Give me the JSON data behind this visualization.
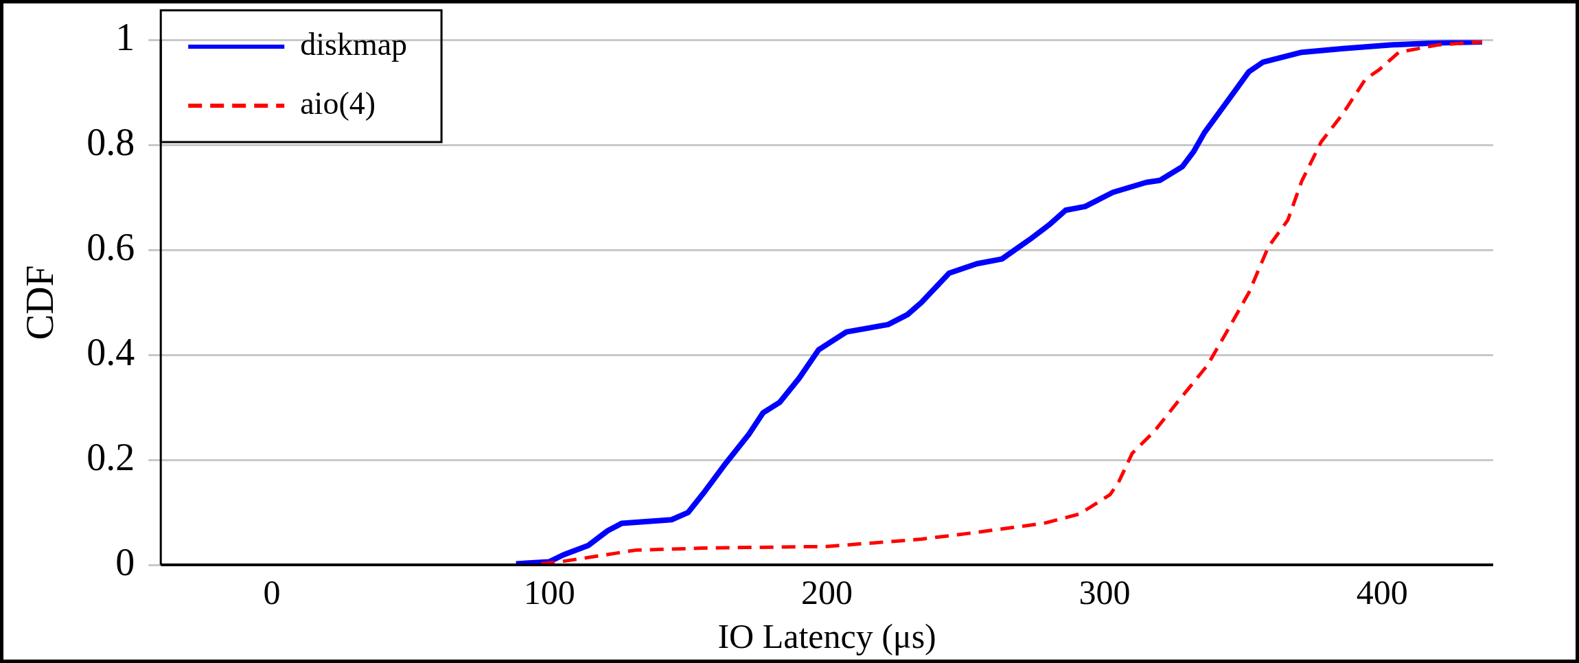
{
  "chart_data": {
    "type": "line",
    "xlabel": "IO Latency (μs)",
    "ylabel": "CDF",
    "xlim": [
      -40,
      440
    ],
    "xticks": [
      0,
      100,
      200,
      300,
      400
    ],
    "ylim": [
      0,
      1
    ],
    "yticks": [
      0,
      0.2,
      0.4,
      0.6,
      0.8,
      1
    ],
    "grid": "y",
    "legend": "top left",
    "marker": "none",
    "series": [
      {
        "name": "diskmap",
        "color": "#0000ff",
        "line_style": "solid",
        "x": [
          88,
          100,
          105,
          114,
          121,
          126,
          144,
          150,
          156,
          163,
          172,
          177,
          183,
          190,
          197,
          207,
          222,
          229,
          234,
          244,
          254,
          263,
          273,
          280,
          286,
          293,
          303,
          315,
          320,
          328,
          332,
          336,
          345,
          352,
          357,
          371,
          386,
          403,
          420,
          436
        ],
        "values": [
          0.002,
          0.006,
          0.019,
          0.037,
          0.065,
          0.079,
          0.086,
          0.1,
          0.14,
          0.19,
          0.25,
          0.29,
          0.31,
          0.356,
          0.41,
          0.444,
          0.458,
          0.477,
          0.5,
          0.556,
          0.574,
          0.583,
          0.62,
          0.648,
          0.676,
          0.683,
          0.71,
          0.729,
          0.733,
          0.759,
          0.787,
          0.824,
          0.889,
          0.94,
          0.958,
          0.977,
          0.984,
          0.991,
          0.995,
          0.997
        ]
      },
      {
        "name": "aio(4)",
        "color": "#ff0000",
        "line_style": "dashed",
        "x": [
          97,
          104,
          114,
          131,
          156,
          183,
          200,
          217,
          234,
          251,
          278,
          291,
          302,
          305,
          310,
          318,
          327,
          337,
          344,
          352,
          359,
          366,
          371,
          378,
          386,
          394,
          399,
          406,
          420,
          436
        ],
        "values": [
          0.002,
          0.006,
          0.014,
          0.028,
          0.032,
          0.034,
          0.035,
          0.042,
          0.049,
          0.06,
          0.079,
          0.097,
          0.134,
          0.157,
          0.213,
          0.255,
          0.315,
          0.38,
          0.444,
          0.519,
          0.606,
          0.657,
          0.731,
          0.806,
          0.861,
          0.926,
          0.944,
          0.977,
          0.991,
          0.997
        ]
      }
    ]
  }
}
